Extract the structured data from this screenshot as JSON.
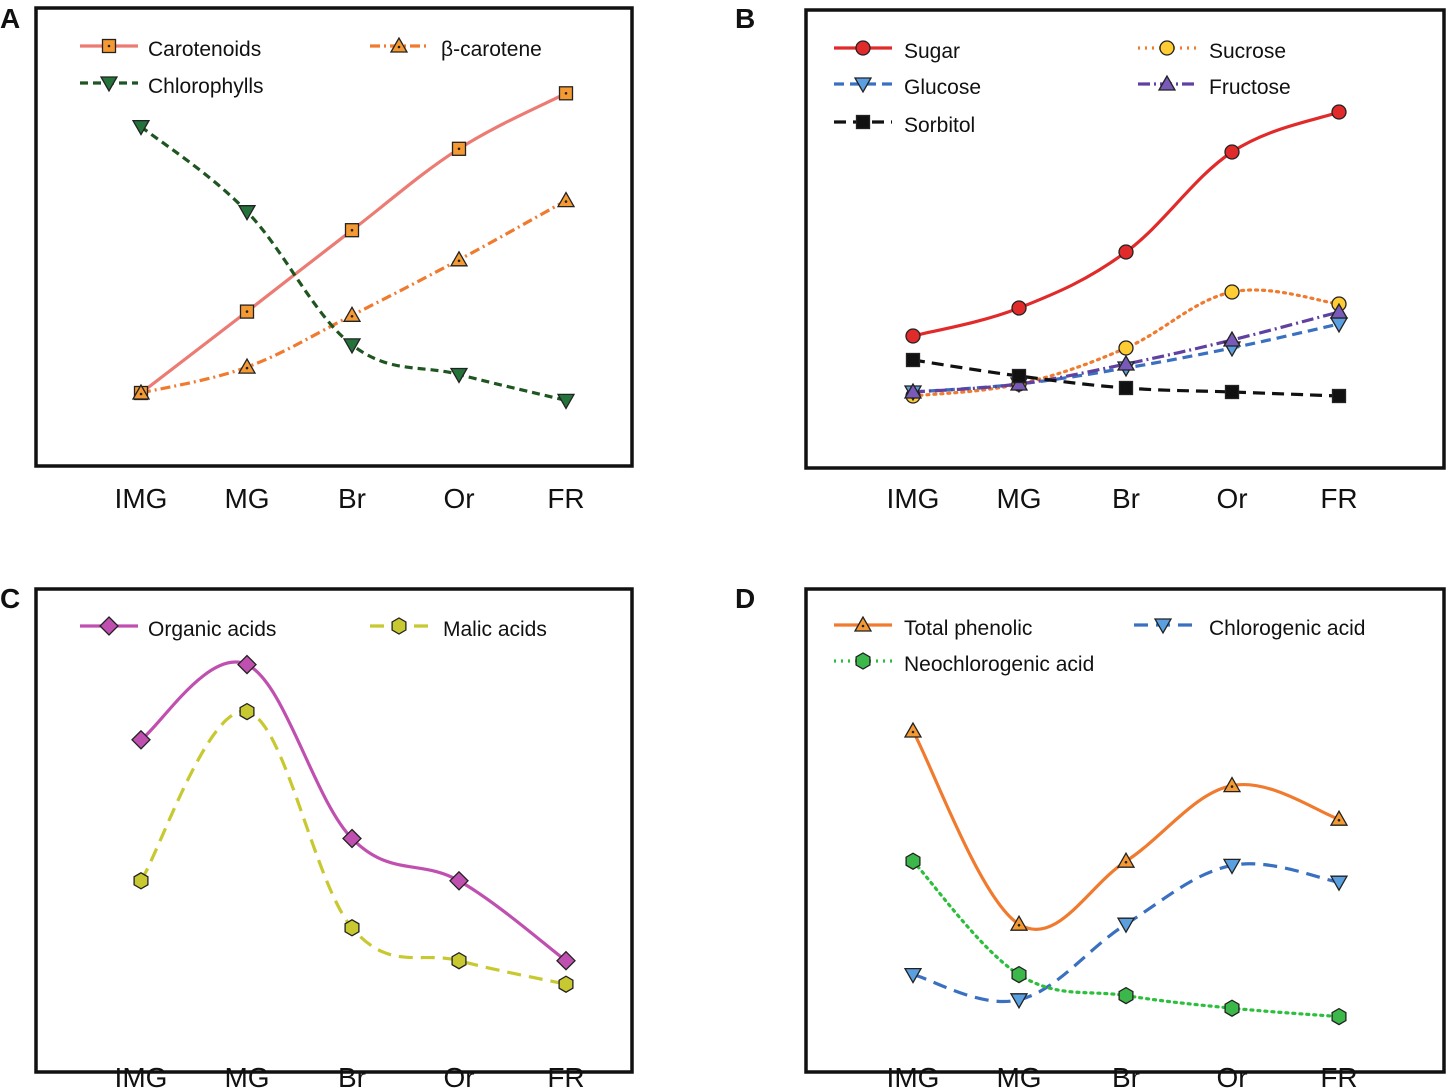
{
  "chart_data": [
    {
      "panel": "A",
      "type": "line",
      "categories": [
        "IMG",
        "MG",
        "Br",
        "Or",
        "FR"
      ],
      "ylim": [
        0,
        100
      ],
      "series": [
        {
          "name": "Carotenoids",
          "values": [
            10,
            32,
            54,
            76,
            91
          ],
          "color": "#ec7b74",
          "dash": "",
          "marker": "square-dot",
          "marker_fill": "#f59a32"
        },
        {
          "name": "β-carotene",
          "values": [
            10,
            17,
            31,
            46,
            62
          ],
          "color": "#f07a2e",
          "dash": "10 4 2 4",
          "marker": "triangle-dot",
          "marker_fill": "#f59a32"
        },
        {
          "name": "Chlorophylls",
          "values": [
            82,
            59,
            23,
            15,
            8
          ],
          "color": "#1f5520",
          "dash": "8 5",
          "marker": "triangle-down",
          "marker_fill": "#23733a"
        }
      ]
    },
    {
      "panel": "B",
      "type": "line",
      "categories": [
        "IMG",
        "MG",
        "Br",
        "Or",
        "FR"
      ],
      "ylim": [
        0,
        100
      ],
      "series": [
        {
          "name": "Sugar",
          "values": [
            26,
            33,
            47,
            72,
            82
          ],
          "color": "#e12a2a",
          "dash": "",
          "marker": "circle",
          "marker_fill": "#e12a2a"
        },
        {
          "name": "Sucrose",
          "values": [
            11,
            14,
            23,
            37,
            34
          ],
          "color": "#f07a2e",
          "dash": "2 5",
          "marker": "circle",
          "marker_fill": "#ffcc33"
        },
        {
          "name": "Glucose",
          "values": [
            12,
            14,
            18,
            23,
            29
          ],
          "color": "#3a70c0",
          "dash": "10 6",
          "marker": "triangle-down",
          "marker_fill": "#5aa0e0"
        },
        {
          "name": "Fructose",
          "values": [
            12,
            14,
            19,
            25,
            32
          ],
          "color": "#6040a0",
          "dash": "12 4 2 4",
          "marker": "triangle",
          "marker_fill": "#7a5ab8"
        },
        {
          "name": "Sorbitol",
          "values": [
            20,
            16,
            13,
            12,
            11
          ],
          "color": "#111111",
          "dash": "12 7",
          "marker": "square",
          "marker_fill": "#111111"
        }
      ]
    },
    {
      "panel": "C",
      "type": "line",
      "categories": [
        "IMG",
        "MG",
        "Br",
        "Or",
        "FR"
      ],
      "ylim": [
        0,
        100
      ],
      "series": [
        {
          "name": "Organic acids",
          "values": [
            56,
            72,
            35,
            26,
            9
          ],
          "color": "#c050b0",
          "dash": "",
          "marker": "diamond",
          "marker_fill": "#c050b0"
        },
        {
          "name": "Malic acids",
          "values": [
            26,
            62,
            16,
            9,
            4
          ],
          "color": "#c8c830",
          "dash": "14 8",
          "marker": "hexagon",
          "marker_fill": "#c8c830"
        }
      ]
    },
    {
      "panel": "D",
      "type": "line",
      "categories": [
        "IMG",
        "MG",
        "Br",
        "Or",
        "FR"
      ],
      "ylim": [
        0,
        100
      ],
      "series": [
        {
          "name": "Total phenolic",
          "values": [
            70,
            24,
            39,
            57,
            49
          ],
          "color": "#f07a2e",
          "dash": "",
          "marker": "triangle-dot",
          "marker_fill": "#f59a32"
        },
        {
          "name": "Chlorogenic acid",
          "values": [
            12,
            6,
            24,
            38,
            34
          ],
          "color": "#3a70c0",
          "dash": "14 8",
          "marker": "triangle-down",
          "marker_fill": "#5aa0e0"
        },
        {
          "name": "Neochlorogenic acid",
          "values": [
            39,
            12,
            7,
            4,
            2
          ],
          "color": "#2cbf3c",
          "dash": "2 5",
          "marker": "hexagon",
          "marker_fill": "#3cb84a"
        }
      ]
    }
  ]
}
